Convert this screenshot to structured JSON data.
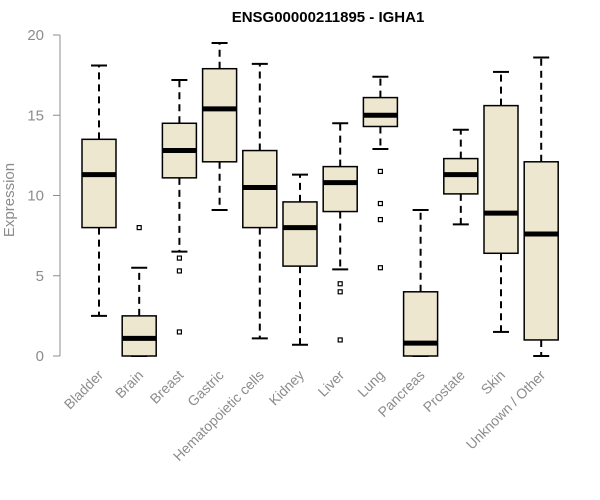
{
  "chart_data": {
    "type": "boxplot",
    "title": "ENSG00000211895 - IGHA1",
    "xlabel": "",
    "ylabel": "Expression",
    "ylim": [
      0,
      20
    ],
    "yticks": [
      0,
      5,
      10,
      15,
      20
    ],
    "box_color": "#ede7d0",
    "series": [
      {
        "name": "Bladder",
        "min": 2.5,
        "q1": 8.0,
        "median": 11.3,
        "q3": 13.5,
        "max": 18.1,
        "outliers": []
      },
      {
        "name": "Brain",
        "min": 0.0,
        "q1": 0.0,
        "median": 1.1,
        "q3": 2.5,
        "max": 5.5,
        "outliers": [
          8.0
        ]
      },
      {
        "name": "Breast",
        "min": 6.5,
        "q1": 11.1,
        "median": 12.8,
        "q3": 14.5,
        "max": 17.2,
        "outliers": [
          6.1,
          5.3,
          1.5
        ]
      },
      {
        "name": "Gastric",
        "min": 9.1,
        "q1": 12.1,
        "median": 15.4,
        "q3": 17.9,
        "max": 19.5,
        "outliers": []
      },
      {
        "name": "Hematopoietic cells",
        "min": 1.1,
        "q1": 8.0,
        "median": 10.5,
        "q3": 12.8,
        "max": 18.2,
        "outliers": []
      },
      {
        "name": "Kidney",
        "min": 0.7,
        "q1": 5.6,
        "median": 8.0,
        "q3": 9.6,
        "max": 11.3,
        "outliers": []
      },
      {
        "name": "Liver",
        "min": 5.4,
        "q1": 9.0,
        "median": 10.8,
        "q3": 11.8,
        "max": 14.5,
        "outliers": [
          4.5,
          4.0,
          1.0
        ]
      },
      {
        "name": "Lung",
        "min": 12.9,
        "q1": 14.3,
        "median": 15.0,
        "q3": 16.1,
        "max": 17.4,
        "outliers": [
          11.5,
          9.5,
          8.5,
          5.5
        ]
      },
      {
        "name": "Pancreas",
        "min": 0.0,
        "q1": 0.0,
        "median": 0.8,
        "q3": 4.0,
        "max": 9.1,
        "outliers": []
      },
      {
        "name": "Prostate",
        "min": 8.2,
        "q1": 10.1,
        "median": 11.3,
        "q3": 12.3,
        "max": 14.1,
        "outliers": []
      },
      {
        "name": "Skin",
        "min": 1.5,
        "q1": 6.4,
        "median": 8.9,
        "q3": 15.6,
        "max": 17.7,
        "outliers": []
      },
      {
        "name": "Unknown / Other",
        "min": 0.0,
        "q1": 1.0,
        "median": 7.6,
        "q3": 12.1,
        "max": 18.6,
        "outliers": []
      }
    ]
  }
}
